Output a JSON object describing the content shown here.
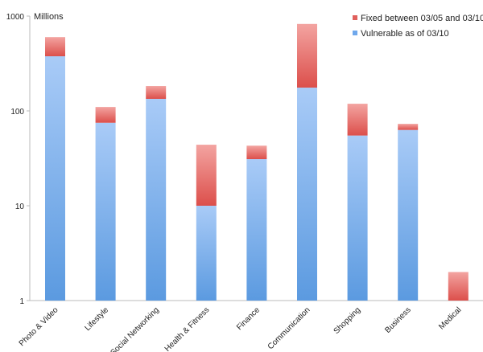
{
  "chart_data": {
    "type": "bar",
    "stacked": true,
    "yscale": "log",
    "ylabel": "Millions",
    "ylim": [
      1,
      1000
    ],
    "yticks": [
      "1",
      "10",
      "100",
      "1000"
    ],
    "categories": [
      "Photo & Video",
      "Lifestyle",
      "Social Networking",
      "Health & Fitness",
      "Finance",
      "Communication",
      "Shopping",
      "Business",
      "Medical"
    ],
    "series": [
      {
        "name": "Vulnerable as of 03/10",
        "color": "#6fa8ec",
        "values": [
          377,
          75,
          134,
          10,
          31,
          176,
          55,
          63,
          0
        ]
      },
      {
        "name": "Fixed between 03/05 and 03/10",
        "color": "#e0605c",
        "totals": [
          600,
          110,
          183,
          44,
          43,
          826,
          119,
          73,
          2
        ]
      }
    ],
    "legend_position": "top-right",
    "grid": false
  }
}
